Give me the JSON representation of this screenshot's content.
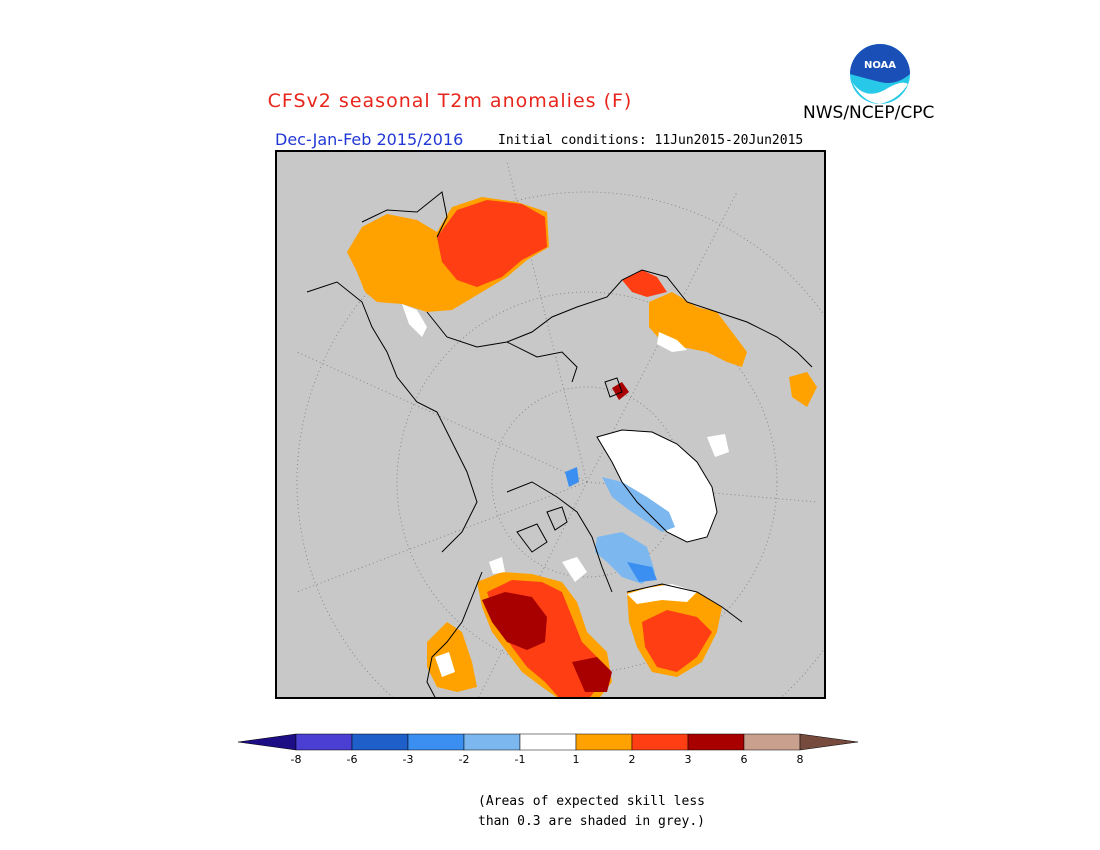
{
  "title": "CFSv2 seasonal T2m anomalies (F)",
  "agency": "NWS/NCEP/CPC",
  "period": "Dec-Jan-Feb 2015/2016",
  "initial_conditions": "Initial conditions: 11Jun2015-20Jun2015",
  "logo": {
    "icon": "noaa-logo-icon",
    "text": "NOAA",
    "colors": {
      "top": "#1b4fb8",
      "bottom": "#27c8e8"
    }
  },
  "map": {
    "projection": "north-polar-stereographic",
    "background": "#c8c8c8"
  },
  "legend": {
    "label_values": [
      "-8",
      "-6",
      "-3",
      "-2",
      "-1",
      "1",
      "2",
      "3",
      "6",
      "8"
    ],
    "colors": [
      "#1e0e86",
      "#4a3fd2",
      "#1e5fc9",
      "#3b8ff0",
      "#7cb8ef",
      "#ffffff",
      "#ffa200",
      "#ff3f13",
      "#a80000",
      "#c9a08e",
      "#764a3c"
    ]
  },
  "note": {
    "line1": "(Areas of expected skill less",
    "line2": "than 0.3 are shaded in grey.)"
  }
}
